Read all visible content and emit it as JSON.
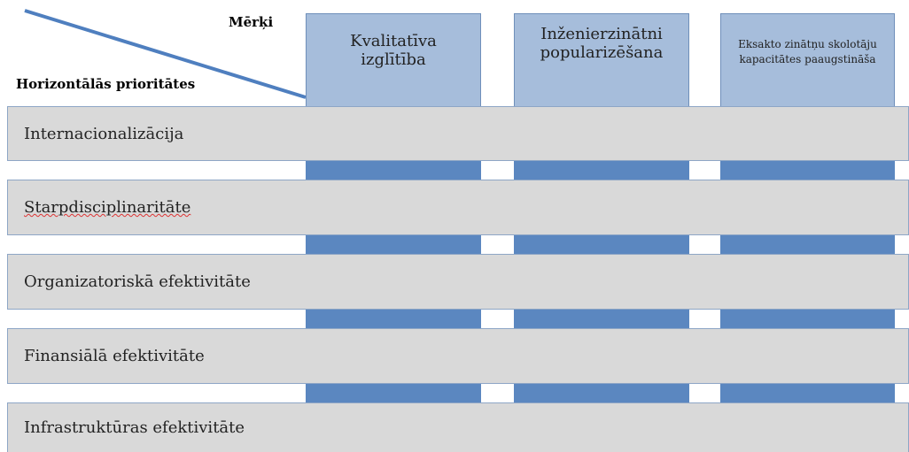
{
  "header": {
    "goals_label": "Mērķi",
    "priorities_label": "Horizontālās prioritātes"
  },
  "goals": [
    "Kvalitatīva izglītība",
    "Inženierzinātni popularizēšana",
    "Eksakto zinātņu skolotāju kapacitātes paaugstināša"
  ],
  "priorities": [
    "Internacionalizācija",
    "Starpdisciplinaritāte",
    "Organizatoriskā efektivitāte",
    "Finansiālā efektivitāte",
    "Infrastruktūras efektivitāte"
  ]
}
